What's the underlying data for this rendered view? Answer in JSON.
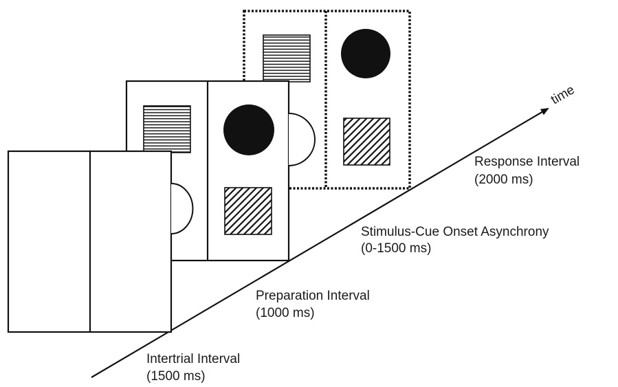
{
  "axis": {
    "label": "time"
  },
  "intervals": [
    {
      "name": "Intertrial Interval",
      "duration": "(1500 ms)"
    },
    {
      "name": "Preparation Interval",
      "duration": "(1000 ms)"
    },
    {
      "name": "Stimulus-Cue Onset Asynchrony",
      "duration": "(0-1500 ms)"
    },
    {
      "name": "Response Interval",
      "duration": "(2000 ms)"
    }
  ],
  "colors": {
    "ink": "#111111",
    "background": "#ffffff"
  }
}
